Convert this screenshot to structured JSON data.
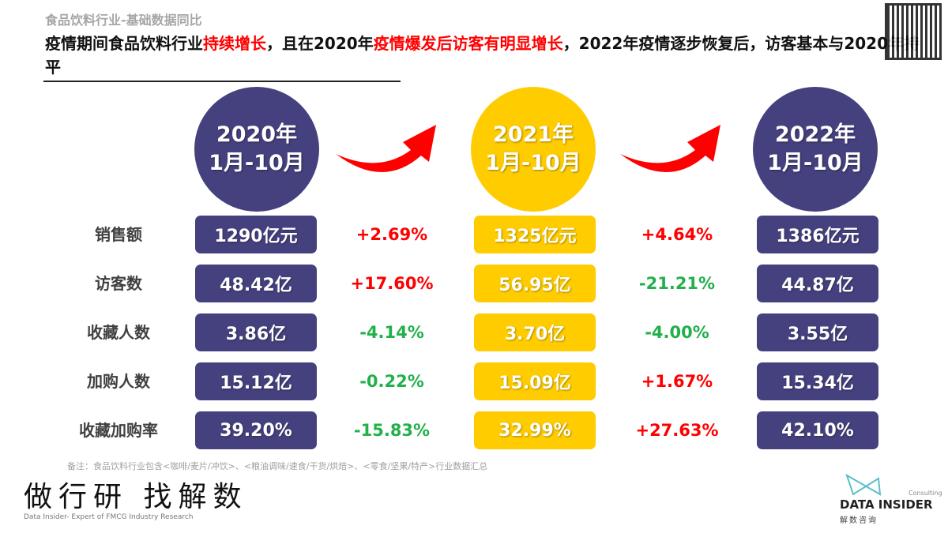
{
  "header": {
    "subtitle": "食品饮料行业-基础数据同比",
    "headline_parts": [
      "疫情期间食品饮料行业",
      "持续增长",
      "，且在2020年",
      "疫情爆发后访客有明显增长",
      "，2022年疫情逐步恢复后，访客基本与2020年持平"
    ]
  },
  "periods": [
    {
      "year": "2020年",
      "range": "1月-10月",
      "color": "#45417f"
    },
    {
      "year": "2021年",
      "range": "1月-10月",
      "color": "#ffcc00"
    },
    {
      "year": "2022年",
      "range": "1月-10月",
      "color": "#45417f"
    }
  ],
  "metrics": [
    {
      "label": "销售额",
      "values": [
        "1290亿元",
        "1325亿元",
        "1386亿元"
      ],
      "changes": [
        "+2.69%",
        "+4.64%"
      ]
    },
    {
      "label": "访客数",
      "values": [
        "48.42亿",
        "56.95亿",
        "44.87亿"
      ],
      "changes": [
        "+17.60%",
        "-21.21%"
      ]
    },
    {
      "label": "收藏人数",
      "values": [
        "3.86亿",
        "3.70亿",
        "3.55亿"
      ],
      "changes": [
        "-4.14%",
        "-4.00%"
      ]
    },
    {
      "label": "加购人数",
      "values": [
        "15.12亿",
        "15.09亿",
        "15.34亿"
      ],
      "changes": [
        "-0.22%",
        "+1.67%"
      ]
    },
    {
      "label": "收藏加购率",
      "values": [
        "39.20%",
        "32.99%",
        "42.10%"
      ],
      "changes": [
        "-15.83%",
        "+27.63%"
      ]
    }
  ],
  "colors": {
    "increase": "#ff0000",
    "decrease": "#22b04b",
    "arrow": "#ff0000"
  },
  "footer": {
    "note": "备注：食品饮料行业包含<咖啡/麦片/冲饮>、<粮油调味/速食/干货/烘焙>、<零食/坚果/特产>行业数据汇总",
    "slogan": "做行研 找解数",
    "slogan_en": "Data Insider- Expert of FMCG Industry Research",
    "brand": "DATA INSIDER",
    "brand_tag": "Consulting",
    "brand_cn": "解数咨询"
  }
}
